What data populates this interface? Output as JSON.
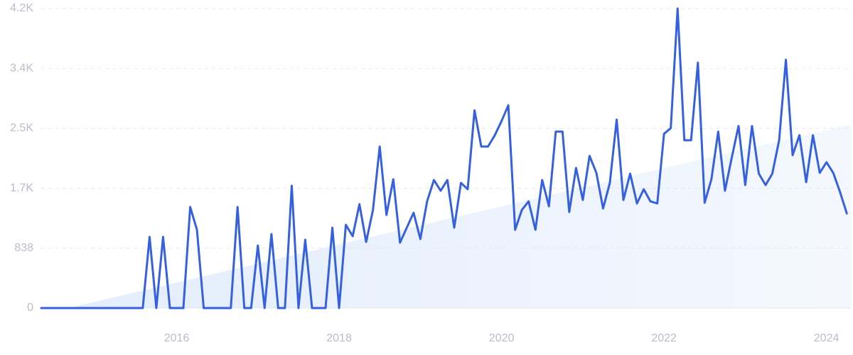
{
  "chart_data": {
    "type": "line",
    "color": "#3560e0",
    "grid": true,
    "xlim": [
      2014.333,
      2024.3
    ],
    "xticks": [
      2016,
      2018,
      2020,
      2022,
      2024
    ],
    "ylim": [
      0,
      4190
    ],
    "yticks": [
      0,
      {
        "value": 838,
        "label": "838"
      },
      {
        "value": 1676,
        "label": "1.7K"
      },
      {
        "value": 2514,
        "label": "2.5K"
      },
      {
        "value": 3352,
        "label": "3.4K"
      },
      {
        "value": 4190,
        "label": "4.2K"
      }
    ],
    "trend": {
      "color": "#dce8fb",
      "x": [
        2014.667,
        2024.3
      ],
      "values": [
        0,
        2570
      ]
    },
    "x": [
      2014.333,
      2014.417,
      2014.5,
      2014.583,
      2014.667,
      2014.75,
      2014.833,
      2014.917,
      2015,
      2015.083,
      2015.167,
      2015.25,
      2015.333,
      2015.417,
      2015.5,
      2015.583,
      2015.667,
      2015.75,
      2015.833,
      2015.917,
      2016,
      2016.083,
      2016.167,
      2016.25,
      2016.333,
      2016.417,
      2016.5,
      2016.583,
      2016.667,
      2016.75,
      2016.833,
      2016.917,
      2017,
      2017.083,
      2017.167,
      2017.25,
      2017.333,
      2017.417,
      2017.5,
      2017.583,
      2017.667,
      2017.75,
      2017.833,
      2017.917,
      2018,
      2018.083,
      2018.167,
      2018.25,
      2018.333,
      2018.417,
      2018.5,
      2018.583,
      2018.667,
      2018.75,
      2018.833,
      2018.917,
      2019,
      2019.083,
      2019.167,
      2019.25,
      2019.333,
      2019.417,
      2019.5,
      2019.583,
      2019.667,
      2019.75,
      2019.833,
      2019.917,
      2020,
      2020.083,
      2020.167,
      2020.25,
      2020.333,
      2020.417,
      2020.5,
      2020.583,
      2020.667,
      2020.75,
      2020.833,
      2020.917,
      2021,
      2021.083,
      2021.167,
      2021.25,
      2021.333,
      2021.417,
      2021.5,
      2021.583,
      2021.667,
      2021.75,
      2021.833,
      2021.917,
      2022,
      2022.083,
      2022.167,
      2022.25,
      2022.333,
      2022.417,
      2022.5,
      2022.583,
      2022.667,
      2022.75,
      2022.833,
      2022.917,
      2023,
      2023.083,
      2023.167,
      2023.25,
      2023.333,
      2023.417,
      2023.5,
      2023.583,
      2023.667,
      2023.75,
      2023.833,
      2023.917,
      2024,
      2024.083,
      2024.167,
      2024.25
    ],
    "values": [
      0,
      0,
      0,
      0,
      0,
      0,
      0,
      0,
      0,
      0,
      0,
      0,
      0,
      0,
      0,
      0,
      995,
      0,
      995,
      0,
      0,
      0,
      1413,
      1095,
      0,
      0,
      0,
      0,
      0,
      1413,
      0,
      0,
      875,
      0,
      1035,
      0,
      0,
      1711,
      0,
      955,
      0,
      0,
      0,
      1124,
      0,
      1164,
      1005,
      1453,
      925,
      1373,
      2259,
      1303,
      1801,
      915,
      1124,
      1333,
      965,
      1492,
      1791,
      1642,
      1791,
      1124,
      1751,
      1662,
      2766,
      2259,
      2259,
      2418,
      2617,
      2836,
      1095,
      1373,
      1492,
      1095,
      1791,
      1423,
      2468,
      2468,
      1343,
      1960,
      1512,
      2129,
      1891,
      1393,
      1751,
      2636,
      1512,
      1880,
      1463,
      1662,
      1492,
      1463,
      2438,
      2517,
      4190,
      2348,
      2348,
      3433,
      1473,
      1801,
      2468,
      1642,
      2100,
      2547,
      1721,
      2547,
      1880,
      1721,
      1880,
      2348,
      3473,
      2139,
      2418,
      1761,
      2418,
      1891,
      2040,
      1891,
      1622,
      1323
    ]
  }
}
